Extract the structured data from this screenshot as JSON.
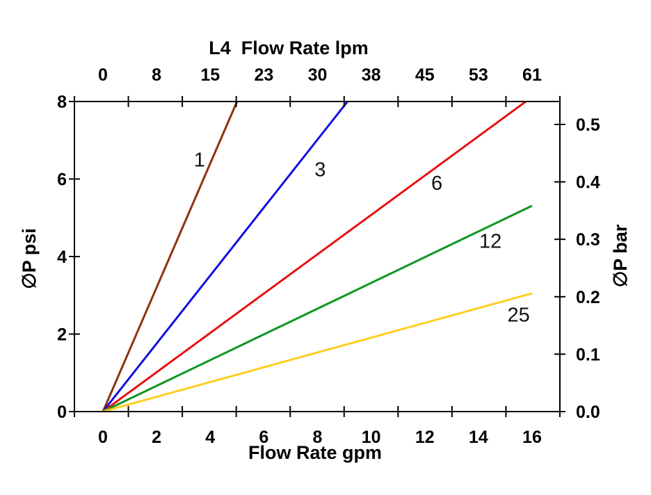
{
  "chart_data": {
    "type": "line",
    "title": "L4  Flow Rate lpm",
    "xlabel": "Flow Rate gpm",
    "ylabel_left": "∅P psi",
    "ylabel_right": "∅P bar",
    "x_bottom_ticks": [
      0,
      2,
      4,
      6,
      8,
      10,
      12,
      14,
      16
    ],
    "top_tick_labels": [
      "0",
      "8",
      "15",
      "23",
      "30",
      "38",
      "45",
      "53",
      "61"
    ],
    "y_left_ticks": [
      0,
      2,
      4,
      6,
      8
    ],
    "y_right_ticks": [
      "0.0",
      "0.1",
      "0.2",
      "0.3",
      "0.4",
      "0.5"
    ],
    "x_range_gpm": [
      -1.06,
      17.04
    ],
    "y_range_psi": [
      0,
      8
    ],
    "grid": false,
    "legend": "inline-labels",
    "axis_color": "#000000",
    "series": [
      {
        "label": "1",
        "color": "#8C3310",
        "points": [
          [
            0,
            0
          ],
          [
            5.0,
            8.0
          ]
        ],
        "label_pos": [
          3.6,
          6.5
        ]
      },
      {
        "label": "3",
        "color": "#1010E0",
        "points": [
          [
            0,
            0
          ],
          [
            9.12,
            8.0
          ]
        ],
        "label_pos": [
          8.1,
          6.25
        ]
      },
      {
        "label": "6",
        "color": "#E81212",
        "points": [
          [
            0,
            0
          ],
          [
            15.77,
            8.0
          ]
        ],
        "label_pos": [
          12.45,
          5.9
        ]
      },
      {
        "label": "12",
        "color": "#0E9622",
        "points": [
          [
            0,
            0
          ],
          [
            16.0,
            5.31
          ]
        ],
        "label_pos": [
          14.45,
          4.4
        ]
      },
      {
        "label": "25",
        "color": "#FFCE1E",
        "points": [
          [
            0,
            0
          ],
          [
            16.0,
            3.05
          ]
        ],
        "label_pos": [
          15.5,
          2.5
        ]
      }
    ]
  }
}
